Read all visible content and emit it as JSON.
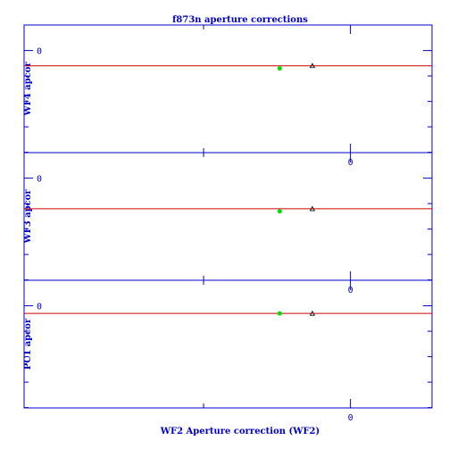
{
  "chart_data": {
    "type": "scatter",
    "title": "f873n aperture corrections",
    "xlabel": "WF2 Aperture correction (WF2)",
    "x_tick_label": "0",
    "xlim": [
      -0.6,
      0.15
    ],
    "colors": {
      "axes": "#0000cc",
      "fit_line": "#cc0000",
      "point_a": "#00dd00",
      "point_b": "#000000"
    },
    "panels": [
      {
        "ylabel": "WF4 apcor",
        "y_tick_label": "0",
        "ylim": [
          -0.2,
          0.05
        ],
        "line_y": -0.03,
        "points": [
          {
            "series": "green",
            "x": -0.13,
            "y": -0.035
          },
          {
            "series": "black",
            "x": -0.07,
            "y": -0.03
          }
        ]
      },
      {
        "ylabel": "WF3 apcor",
        "y_tick_label": "0",
        "ylim": [
          -0.2,
          0.05
        ],
        "line_y": -0.06,
        "points": [
          {
            "series": "green",
            "x": -0.13,
            "y": -0.065
          },
          {
            "series": "black",
            "x": -0.07,
            "y": -0.06
          }
        ]
      },
      {
        "ylabel": "PC1 apcor",
        "y_tick_label": "0",
        "ylim": [
          -0.2,
          0.05
        ],
        "line_y": -0.015,
        "points": [
          {
            "series": "green",
            "x": -0.13,
            "y": -0.015
          },
          {
            "series": "black",
            "x": -0.07,
            "y": -0.015
          }
        ]
      }
    ]
  }
}
